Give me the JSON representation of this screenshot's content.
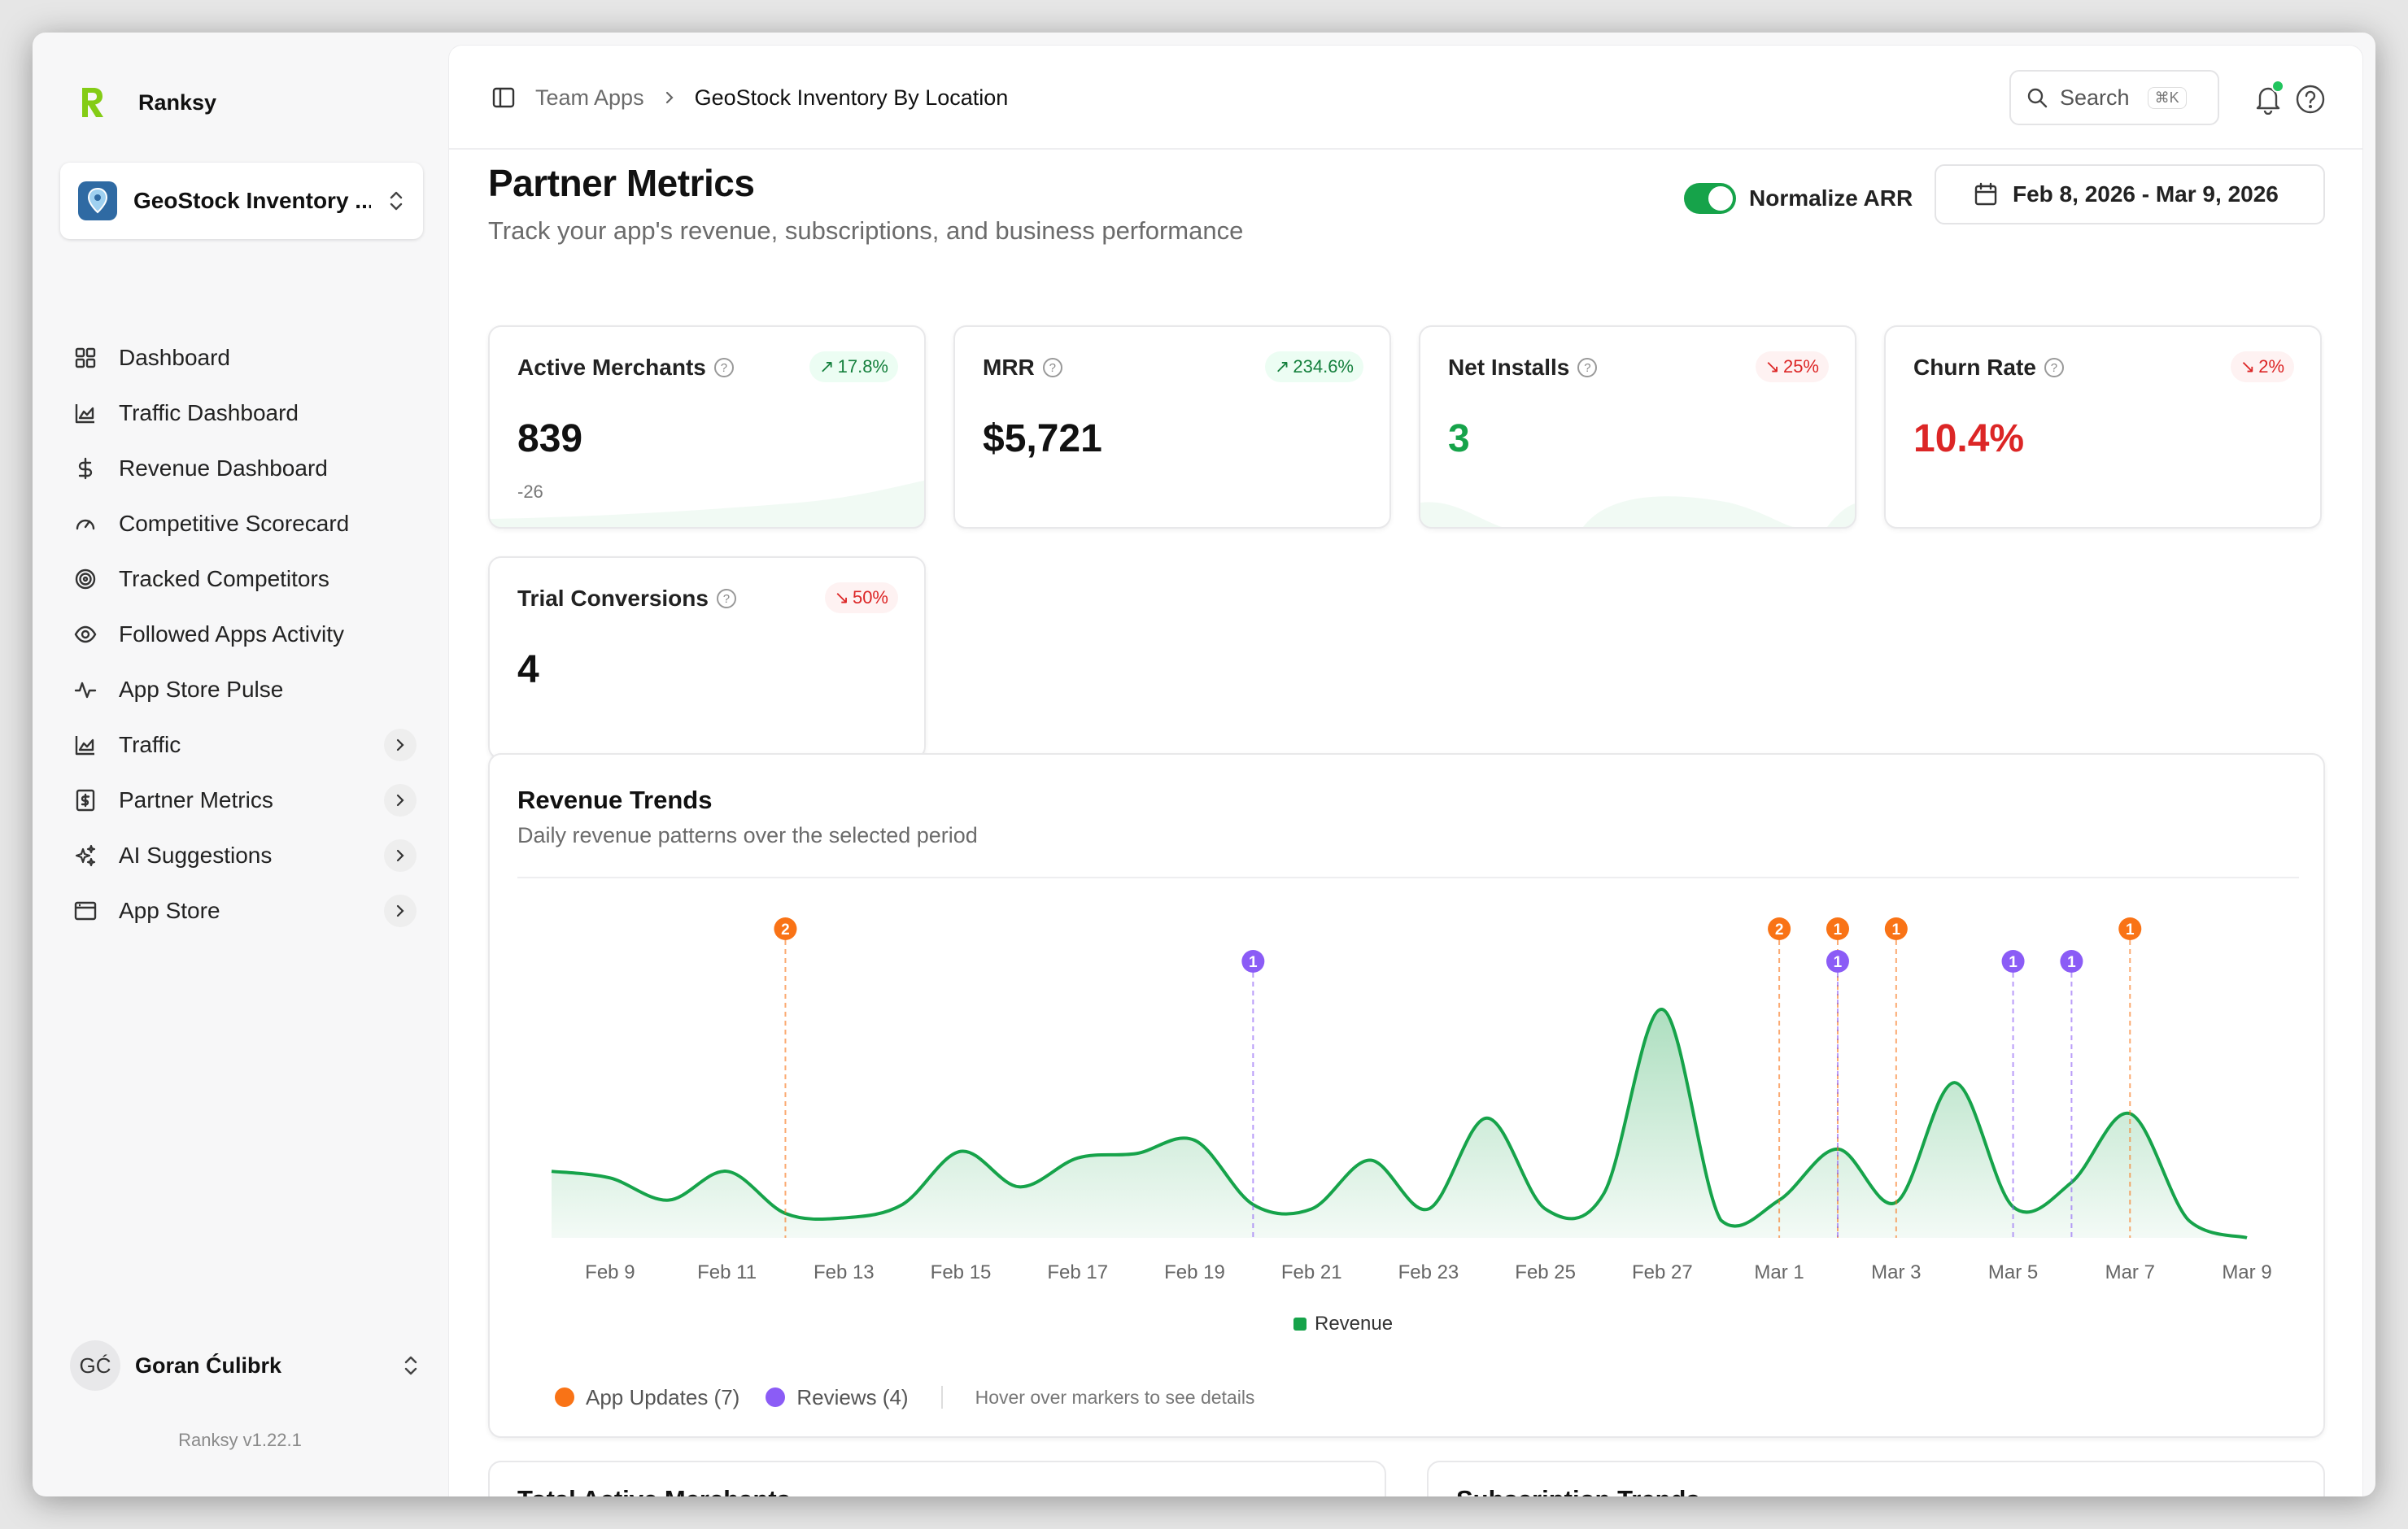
{
  "brand": {
    "name": "Ranksy",
    "logo_letter": "R",
    "accent": "#84cc16"
  },
  "app_switcher": {
    "name": "GeoStock Inventory ..."
  },
  "sidebar": {
    "items": [
      {
        "label": "Dashboard",
        "icon": "grid-icon",
        "has_submenu": false
      },
      {
        "label": "Traffic Dashboard",
        "icon": "area-chart-icon",
        "has_submenu": false
      },
      {
        "label": "Revenue Dashboard",
        "icon": "dollar-icon",
        "has_submenu": false
      },
      {
        "label": "Competitive Scorecard",
        "icon": "gauge-icon",
        "has_submenu": false
      },
      {
        "label": "Tracked Competitors",
        "icon": "target-icon",
        "has_submenu": false
      },
      {
        "label": "Followed Apps Activity",
        "icon": "eye-icon",
        "has_submenu": false
      },
      {
        "label": "App Store Pulse",
        "icon": "pulse-icon",
        "has_submenu": false
      },
      {
        "label": "Traffic",
        "icon": "area-chart-icon",
        "has_submenu": true
      },
      {
        "label": "Partner Metrics",
        "icon": "receipt-dollar-icon",
        "has_submenu": true
      },
      {
        "label": "AI Suggestions",
        "icon": "sparkles-icon",
        "has_submenu": true
      },
      {
        "label": "App Store",
        "icon": "browser-window-icon",
        "has_submenu": true
      }
    ]
  },
  "user": {
    "initials": "GĆ",
    "name": "Goran Ćulibrk"
  },
  "version": "Ranksy  v1.22.1",
  "breadcrumb": {
    "parent": "Team Apps",
    "current": "GeoStock Inventory By Location"
  },
  "search": {
    "label": "Search",
    "shortcut": "⌘K"
  },
  "page": {
    "title": "Partner Metrics",
    "subtitle": "Track your app's revenue, subscriptions, and business performance"
  },
  "normalize": {
    "label": "Normalize ARR",
    "enabled": true
  },
  "date_range": "Feb 8, 2026 - Mar 9, 2026",
  "metrics": [
    {
      "title": "Active Merchants",
      "badge": "17.8%",
      "trend": "up",
      "value": "839",
      "sub": "-26",
      "value_color": "default"
    },
    {
      "title": "MRR",
      "badge": "234.6%",
      "trend": "up",
      "value": "$5,721",
      "sub": "",
      "value_color": "default"
    },
    {
      "title": "Net Installs",
      "badge": "25%",
      "trend": "down",
      "value": "3",
      "sub": "",
      "value_color": "green"
    },
    {
      "title": "Churn Rate",
      "badge": "2%",
      "trend": "down",
      "value": "10.4%",
      "sub": "",
      "value_color": "red"
    },
    {
      "title": "Trial Conversions",
      "badge": "50%",
      "trend": "down",
      "value": "4",
      "sub": "",
      "value_color": "default"
    }
  ],
  "revenue_chart": {
    "title": "Revenue Trends",
    "subtitle": "Daily revenue patterns over the selected period",
    "legend": "Revenue",
    "hint": "Hover over markers to see details",
    "legend_app_updates": "App Updates (7)",
    "legend_reviews": "Reviews (4)",
    "colors": {
      "line": "#16a34a",
      "app_update": "#f97316",
      "review": "#8b5cf6"
    }
  },
  "chart_data": {
    "type": "area",
    "x": [
      "Feb 8",
      "Feb 9",
      "Feb 10",
      "Feb 11",
      "Feb 12",
      "Feb 13",
      "Feb 14",
      "Feb 15",
      "Feb 16",
      "Feb 17",
      "Feb 18",
      "Feb 19",
      "Feb 20",
      "Feb 21",
      "Feb 22",
      "Feb 23",
      "Feb 24",
      "Feb 25",
      "Feb 26",
      "Feb 27",
      "Feb 28",
      "Mar 1",
      "Mar 2",
      "Mar 3",
      "Mar 4",
      "Mar 5",
      "Mar 6",
      "Mar 7",
      "Mar 8",
      "Mar 9"
    ],
    "x_tick_labels": [
      "Feb 9",
      "Feb 11",
      "Feb 13",
      "Feb 15",
      "Feb 17",
      "Feb 19",
      "Feb 21",
      "Feb 23",
      "Feb 25",
      "Feb 27",
      "Mar 1",
      "Mar 3",
      "Mar 5",
      "Mar 7",
      "Mar 9"
    ],
    "series": [
      {
        "name": "Revenue",
        "values": [
          30,
          27,
          17,
          30,
          11,
          9,
          15,
          39,
          23,
          36,
          38,
          44,
          15,
          13,
          35,
          13,
          54,
          13,
          20,
          103,
          8,
          17,
          40,
          16,
          70,
          14,
          25,
          56,
          8,
          0
        ]
      }
    ],
    "ylim": [
      0,
      110
    ],
    "grid": false,
    "legend_position": "bottom",
    "markers": [
      {
        "x": "Feb 12",
        "type": "app_update",
        "count": 2
      },
      {
        "x": "Feb 20",
        "type": "review",
        "count": 1
      },
      {
        "x": "Mar 1",
        "type": "app_update",
        "count": 2
      },
      {
        "x": "Mar 2",
        "type": "app_update",
        "count": 1
      },
      {
        "x": "Mar 2",
        "type": "review",
        "count": 1
      },
      {
        "x": "Mar 3",
        "type": "app_update",
        "count": 1
      },
      {
        "x": "Mar 5",
        "type": "review",
        "count": 1
      },
      {
        "x": "Mar 6",
        "type": "review",
        "count": 1
      },
      {
        "x": "Mar 7",
        "type": "app_update",
        "count": 1
      }
    ]
  },
  "bottom_cards": [
    "Total Active Merchants",
    "Subscription Trends"
  ]
}
